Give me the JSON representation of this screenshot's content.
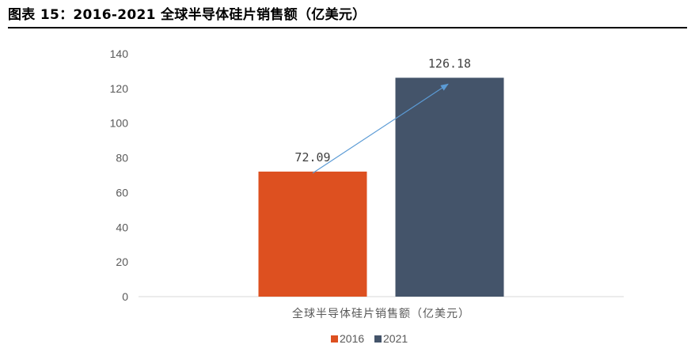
{
  "figure_title": "图表 15：2016-2021 全球半导体硅片销售额（亿美元）",
  "chart_data": {
    "type": "bar",
    "categories": [
      "全球半导体硅片销售额（亿美元）"
    ],
    "series": [
      {
        "name": "2016",
        "values": [
          72.09
        ],
        "color": "#DD5020",
        "label": "72.09"
      },
      {
        "name": "2021",
        "values": [
          126.18
        ],
        "color": "#44546A",
        "label": "126.18"
      }
    ],
    "xlabel": "全球半导体硅片销售额（亿美元）",
    "ylim": [
      0,
      140
    ],
    "yticks": [
      0,
      20,
      40,
      60,
      80,
      100,
      120,
      140
    ],
    "grid": false,
    "legend_position": "bottom",
    "annotation": {
      "type": "arrow",
      "from": "2016",
      "to": "2021",
      "color": "#5B9BD5"
    }
  }
}
